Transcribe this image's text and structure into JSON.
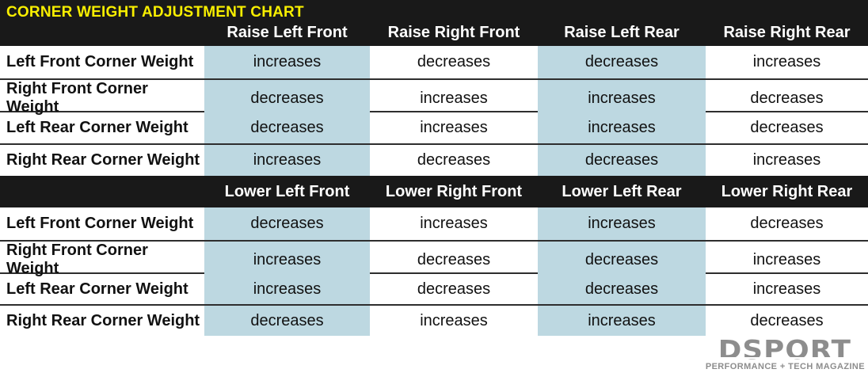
{
  "chart_data": {
    "type": "table",
    "title": "CORNER WEIGHT ADJUSTMENT CHART",
    "sections": [
      {
        "name": "raise",
        "columns": [
          "Raise Left Front",
          "Raise Right Front",
          "Raise Left Rear",
          "Raise Right Rear"
        ],
        "rows": [
          {
            "label": "Left Front Corner Weight",
            "values": [
              "increases",
              "decreases",
              "decreases",
              "increases"
            ]
          },
          {
            "label": "Right Front Corner Weight",
            "values": [
              "decreases",
              "increases",
              "increases",
              "decreases"
            ]
          },
          {
            "label": "Left Rear Corner Weight",
            "values": [
              "decreases",
              "increases",
              "increases",
              "decreases"
            ]
          },
          {
            "label": "Right Rear Corner Weight",
            "values": [
              "increases",
              "decreases",
              "decreases",
              "increases"
            ]
          }
        ]
      },
      {
        "name": "lower",
        "columns": [
          "Lower Left Front",
          "Lower Right Front",
          "Lower Left Rear",
          "Lower Right Rear"
        ],
        "rows": [
          {
            "label": "Left Front Corner Weight",
            "values": [
              "decreases",
              "increases",
              "increases",
              "decreases"
            ]
          },
          {
            "label": "Right Front Corner Weight",
            "values": [
              "increases",
              "decreases",
              "decreases",
              "increases"
            ]
          },
          {
            "label": "Left Rear Corner Weight",
            "values": [
              "increases",
              "decreases",
              "decreases",
              "increases"
            ]
          },
          {
            "label": "Right Rear Corner Weight",
            "values": [
              "decreases",
              "increases",
              "increases",
              "decreases"
            ]
          }
        ]
      }
    ]
  },
  "logo": {
    "name": "DSPORT",
    "tagline": "PERFORMANCE + TECH MAGAZINE"
  },
  "colors": {
    "band_background": "#191919",
    "title_yellow": "#f7ee00",
    "highlight_blue": "#bdd8e1",
    "separator": "#2e2e2e",
    "logo_gray": "#8d8d8d"
  }
}
